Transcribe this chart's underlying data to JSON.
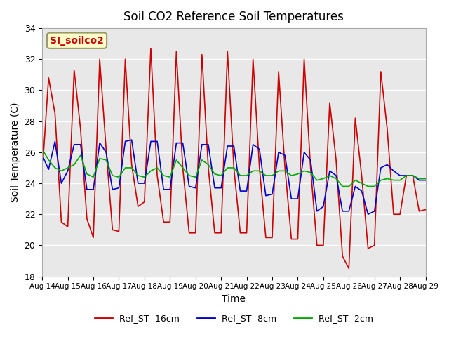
{
  "title": "Soil CO2 Reference Soil Temperatures",
  "xlabel": "Time",
  "ylabel": "Soil Temperature (C)",
  "ylim": [
    18,
    34
  ],
  "xlim": [
    0,
    15
  ],
  "background_color": "#e8e8e8",
  "annotation_text": "SI_soilco2",
  "annotation_color": "#cc0000",
  "annotation_bg": "#ffffcc",
  "annotation_border": "#999966",
  "xtick_labels": [
    "Aug 14",
    "Aug 15",
    "Aug 16",
    "Aug 17",
    "Aug 18",
    "Aug 19",
    "Aug 20",
    "Aug 21",
    "Aug 22",
    "Aug 23",
    "Aug 24",
    "Aug 25",
    "Aug 26",
    "Aug 27",
    "Aug 28",
    "Aug 29"
  ],
  "ytick_values": [
    18,
    20,
    22,
    24,
    26,
    28,
    30,
    32,
    34
  ],
  "legend_labels": [
    "Ref_ST -16cm",
    "Ref_ST -8cm",
    "Ref_ST -2cm"
  ],
  "legend_colors": [
    "#cc0000",
    "#0000cc",
    "#00aa00"
  ],
  "red_x": [
    0,
    0.25,
    0.5,
    0.75,
    1.0,
    1.25,
    1.5,
    1.75,
    2.0,
    2.25,
    2.5,
    2.75,
    3.0,
    3.25,
    3.5,
    3.75,
    4.0,
    4.25,
    4.5,
    4.75,
    5.0,
    5.25,
    5.5,
    5.75,
    6.0,
    6.25,
    6.5,
    6.75,
    7.0,
    7.25,
    7.5,
    7.75,
    8.0,
    8.25,
    8.5,
    8.75,
    9.0,
    9.25,
    9.5,
    9.75,
    10.0,
    10.25,
    10.5,
    10.75,
    11.0,
    11.25,
    11.5,
    11.75,
    12.0,
    12.25,
    12.5,
    12.75,
    13.0,
    13.25,
    13.5,
    13.75,
    14.0,
    14.25,
    14.5,
    14.75,
    15.0
  ],
  "red_y": [
    24.7,
    30.8,
    28.5,
    21.5,
    21.2,
    31.3,
    27.5,
    21.7,
    20.5,
    32.0,
    26.2,
    21.0,
    20.9,
    32.0,
    25.2,
    22.5,
    22.8,
    32.7,
    24.5,
    21.5,
    21.5,
    32.5,
    25.0,
    20.8,
    20.8,
    32.3,
    25.0,
    20.8,
    20.8,
    32.5,
    25.0,
    20.8,
    20.8,
    32.0,
    25.0,
    20.5,
    20.5,
    31.2,
    25.0,
    20.4,
    20.4,
    32.0,
    25.0,
    20.0,
    20.0,
    29.2,
    25.5,
    19.3,
    18.5,
    28.2,
    24.5,
    19.8,
    20.0,
    31.2,
    27.5,
    22.0,
    22.0,
    24.5,
    24.5,
    22.2,
    22.3
  ],
  "blue_x": [
    0,
    0.25,
    0.5,
    0.75,
    1.0,
    1.25,
    1.5,
    1.75,
    2.0,
    2.25,
    2.5,
    2.75,
    3.0,
    3.25,
    3.5,
    3.75,
    4.0,
    4.25,
    4.5,
    4.75,
    5.0,
    5.25,
    5.5,
    5.75,
    6.0,
    6.25,
    6.5,
    6.75,
    7.0,
    7.25,
    7.5,
    7.75,
    8.0,
    8.25,
    8.5,
    8.75,
    9.0,
    9.25,
    9.5,
    9.75,
    10.0,
    10.25,
    10.5,
    10.75,
    11.0,
    11.25,
    11.5,
    11.75,
    12.0,
    12.25,
    12.5,
    12.75,
    13.0,
    13.25,
    13.5,
    13.75,
    14.0,
    14.25,
    14.5,
    14.75,
    15.0
  ],
  "blue_y": [
    25.8,
    24.9,
    26.7,
    24.0,
    24.8,
    26.5,
    26.5,
    23.6,
    23.6,
    26.6,
    26.0,
    23.6,
    23.7,
    26.7,
    26.8,
    24.0,
    24.0,
    26.7,
    26.7,
    23.6,
    23.6,
    26.6,
    26.6,
    23.8,
    23.7,
    26.5,
    26.5,
    23.7,
    23.7,
    26.4,
    26.4,
    23.5,
    23.5,
    26.5,
    26.2,
    23.2,
    23.3,
    26.0,
    25.8,
    23.0,
    23.0,
    26.0,
    25.5,
    22.2,
    22.5,
    24.8,
    24.5,
    22.2,
    22.2,
    23.8,
    23.5,
    22.0,
    22.2,
    25.0,
    25.2,
    24.8,
    24.5,
    24.5,
    24.5,
    24.2,
    24.2
  ],
  "green_x": [
    0,
    0.25,
    0.5,
    0.75,
    1.0,
    1.25,
    1.5,
    1.75,
    2.0,
    2.25,
    2.5,
    2.75,
    3.0,
    3.25,
    3.5,
    3.75,
    4.0,
    4.25,
    4.5,
    4.75,
    5.0,
    5.25,
    5.5,
    5.75,
    6.0,
    6.25,
    6.5,
    6.75,
    7.0,
    7.25,
    7.5,
    7.75,
    8.0,
    8.25,
    8.5,
    8.75,
    9.0,
    9.25,
    9.5,
    9.75,
    10.0,
    10.25,
    10.5,
    10.75,
    11.0,
    11.25,
    11.5,
    11.75,
    12.0,
    12.25,
    12.5,
    12.75,
    13.0,
    13.25,
    13.5,
    13.75,
    14.0,
    14.25,
    14.5,
    14.75,
    15.0
  ],
  "green_y": [
    26.2,
    25.5,
    25.0,
    24.8,
    25.0,
    25.2,
    25.8,
    24.6,
    24.4,
    25.6,
    25.5,
    24.5,
    24.4,
    25.0,
    25.0,
    24.5,
    24.4,
    24.8,
    25.0,
    24.5,
    24.4,
    25.5,
    25.0,
    24.5,
    24.4,
    25.5,
    25.2,
    24.6,
    24.5,
    25.0,
    25.0,
    24.5,
    24.5,
    24.8,
    24.8,
    24.5,
    24.5,
    24.8,
    24.8,
    24.5,
    24.6,
    24.8,
    24.7,
    24.2,
    24.3,
    24.5,
    24.3,
    23.8,
    23.8,
    24.2,
    24.0,
    23.8,
    23.8,
    24.2,
    24.3,
    24.2,
    24.2,
    24.5,
    24.5,
    24.3,
    24.3
  ]
}
